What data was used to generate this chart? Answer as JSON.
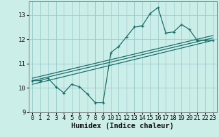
{
  "xlabel": "Humidex (Indice chaleur)",
  "bg_color": "#cceee8",
  "grid_color": "#99cccc",
  "line_color": "#1a6e6a",
  "xlim": [
    -0.5,
    23.5
  ],
  "ylim": [
    9.0,
    13.55
  ],
  "yticks": [
    9,
    10,
    11,
    12,
    13
  ],
  "xticks": [
    0,
    1,
    2,
    3,
    4,
    5,
    6,
    7,
    8,
    9,
    10,
    11,
    12,
    13,
    14,
    15,
    16,
    17,
    18,
    19,
    20,
    21,
    22,
    23
  ],
  "series1_x": [
    0,
    1,
    2,
    3,
    4,
    5,
    6,
    7,
    8,
    9,
    10,
    11,
    12,
    13,
    14,
    15,
    16,
    17,
    18,
    19,
    20,
    21,
    22,
    23
  ],
  "series1_y": [
    10.3,
    10.3,
    10.4,
    10.05,
    9.8,
    10.15,
    10.05,
    9.75,
    9.4,
    9.4,
    11.45,
    11.7,
    12.1,
    12.5,
    12.55,
    13.05,
    13.3,
    12.25,
    12.3,
    12.6,
    12.4,
    11.95,
    11.95,
    11.95
  ],
  "line1_x": [
    0,
    23
  ],
  "line1_y": [
    10.15,
    11.95
  ],
  "line2_x": [
    0,
    23
  ],
  "line2_y": [
    10.4,
    12.15
  ],
  "line3_x": [
    0,
    23
  ],
  "line3_y": [
    10.3,
    12.05
  ],
  "tick_fontsize": 6.5,
  "label_fontsize": 7.5
}
